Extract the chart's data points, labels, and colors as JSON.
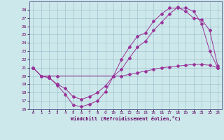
{
  "xlabel": "Windchill (Refroidissement éolien,°C)",
  "bg_color": "#cce8ea",
  "line_color": "#993399",
  "grid_color": "#99bbcc",
  "xlim": [
    -0.5,
    23.5
  ],
  "ylim": [
    16,
    29
  ],
  "xticks": [
    0,
    1,
    2,
    3,
    4,
    5,
    6,
    7,
    8,
    9,
    10,
    11,
    12,
    13,
    14,
    15,
    16,
    17,
    18,
    19,
    20,
    21,
    22,
    23
  ],
  "yticks": [
    16,
    17,
    18,
    19,
    20,
    21,
    22,
    23,
    24,
    25,
    26,
    27,
    28
  ],
  "line1_x": [
    0,
    1,
    2,
    3,
    4,
    5,
    6,
    7,
    8,
    9,
    10,
    11,
    12,
    13,
    14,
    15,
    16,
    17,
    18,
    19,
    20,
    21,
    22,
    23
  ],
  "line1_y": [
    21,
    20,
    19.8,
    18.9,
    17.8,
    16.5,
    16.3,
    16.6,
    17.0,
    18.1,
    20.0,
    22.0,
    23.5,
    24.8,
    25.2,
    26.6,
    27.5,
    28.2,
    28.2,
    28.2,
    27.8,
    26.3,
    23.0,
    21.0
  ],
  "line2_x": [
    0,
    1,
    2,
    3,
    10,
    11,
    12,
    13,
    14,
    15,
    16,
    17,
    18,
    19,
    20,
    21,
    22,
    23
  ],
  "line2_y": [
    21,
    20,
    20,
    20,
    20.0,
    20.0,
    20.2,
    20.4,
    20.6,
    20.8,
    21.0,
    21.1,
    21.2,
    21.3,
    21.4,
    21.4,
    21.3,
    21.0
  ],
  "line3_x": [
    0,
    1,
    2,
    3,
    4,
    5,
    6,
    7,
    8,
    9,
    10,
    11,
    12,
    13,
    14,
    15,
    16,
    17,
    18,
    19,
    20,
    21,
    22,
    23
  ],
  "line3_y": [
    21,
    20,
    19.8,
    19.0,
    18.5,
    17.5,
    17.2,
    17.5,
    18.0,
    18.8,
    20.0,
    20.8,
    22.2,
    23.5,
    24.2,
    25.5,
    26.5,
    27.5,
    28.3,
    27.8,
    27.0,
    26.8,
    25.5,
    21.2
  ],
  "marker": "D",
  "marker_size": 2.0,
  "linewidth": 0.7
}
